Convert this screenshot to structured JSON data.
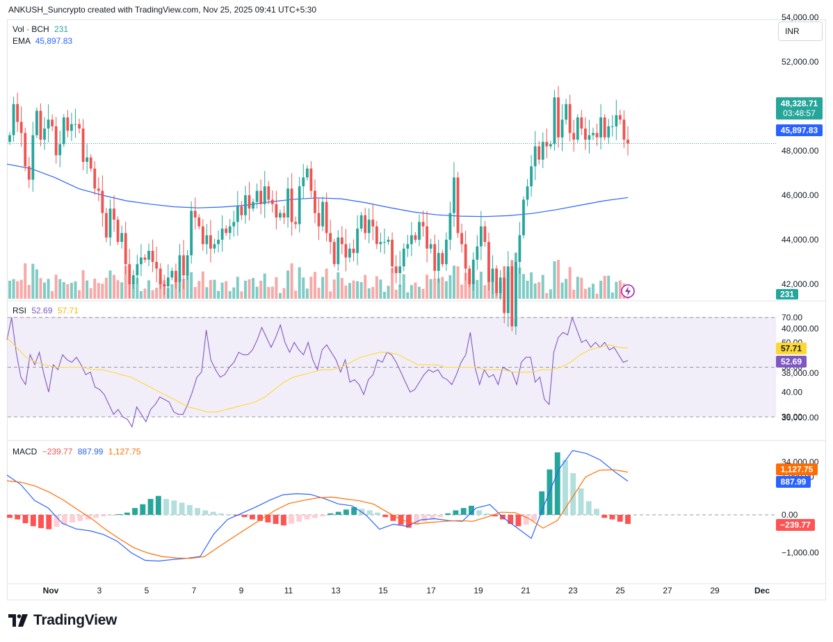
{
  "header": "ANKUSH_Suncrypto created with TradingView.com, Nov 25, 2025 09:41 UTC+5:30",
  "currency_button": "INR",
  "legends": {
    "vol": {
      "label": "Vol · BCH",
      "value": "231"
    },
    "ema": {
      "label": "EMA",
      "value": "45,897.83"
    },
    "rsi": {
      "label": "RSI",
      "v1": "52.69",
      "v2": "57.71"
    },
    "macd": {
      "label": "MACD",
      "v1": "−239.77",
      "v2": "887.99",
      "v3": "1,127.75"
    }
  },
  "brand": "TradingView",
  "chart_data": [
    {
      "type": "candlestick",
      "pane": "price",
      "x_ticks": [
        "Nov",
        "3",
        "5",
        "7",
        "9",
        "11",
        "13",
        "15",
        "17",
        "19",
        "21",
        "23",
        "25",
        "27",
        "29",
        "Dec"
      ],
      "y_ticks": [
        "34,000.00",
        "36,000.00",
        "38,000.00",
        "40,000.00",
        "42,000.00",
        "44,000.00",
        "46,000.00",
        "48,000.00",
        "50,000.00",
        "52,000.00",
        "54,000.00"
      ],
      "ylim": [
        31000,
        54800
      ],
      "close": [
        48700,
        50100,
        49300,
        48800,
        47300,
        46700,
        48700,
        49800,
        48500,
        49000,
        49400,
        49100,
        47800,
        48300,
        49500,
        48900,
        49200,
        49200,
        49000,
        47500,
        47700,
        47200,
        46300,
        46200,
        45200,
        44100,
        45400,
        44900,
        43900,
        44300,
        42900,
        42000,
        42400,
        42900,
        43200,
        43100,
        43500,
        43000,
        42700,
        42000,
        41900,
        42300,
        42600,
        42100,
        43300,
        42400,
        43300,
        45300,
        45000,
        44600,
        43800,
        44200,
        43600,
        43800,
        44000,
        44500,
        44300,
        44600,
        44800,
        45500,
        45100,
        46000,
        45400,
        45700,
        46200,
        45600,
        46400,
        45800,
        45600,
        45000,
        45200,
        45000,
        46300,
        44800,
        44700,
        46400,
        46800,
        47200,
        46200,
        45200,
        44600,
        45700,
        44300,
        43900,
        42900,
        44100,
        43800,
        43200,
        43600,
        43400,
        44500,
        45100,
        44300,
        44900,
        44600,
        43800,
        43900,
        43900,
        44000,
        42800,
        42500,
        42800,
        43600,
        43800,
        44200,
        44000,
        44800,
        44600,
        43600,
        43800,
        42600,
        43400,
        42900,
        44000,
        45200,
        46800,
        44300,
        43800,
        42700,
        42000,
        43100,
        43700,
        44600,
        43900,
        42100,
        42700,
        41600,
        42300,
        40700,
        42800,
        40100,
        43000,
        44200,
        45800,
        46400,
        47300,
        48200,
        47600,
        48400,
        48200,
        48300,
        50400,
        48600,
        49400,
        50100,
        48800,
        48500,
        49500,
        49000,
        48500,
        48700,
        48800,
        48600,
        49500,
        48600,
        49100,
        49100,
        49600,
        49400,
        48500,
        48328.71
      ],
      "ema_approx": [
        47400,
        47200,
        46800,
        46300,
        46000,
        45750,
        45600,
        45480,
        45430,
        45470,
        45550,
        45700,
        45820,
        45880,
        45840,
        45670,
        45450,
        45250,
        45120,
        45060,
        45040,
        45080,
        45180,
        45350,
        45550,
        45750,
        45897.83
      ],
      "last_price_label": "48,328.71",
      "countdown_label": "03:48:57",
      "ema_label": "45,897.83",
      "volume_label": "231"
    },
    {
      "type": "line",
      "pane": "rsi",
      "name": "RSI",
      "y_ticks": [
        "30.00",
        "40.00",
        "50.00",
        "60.00",
        "70.00"
      ],
      "ylim": [
        25,
        72
      ],
      "band": [
        30,
        70
      ],
      "rsi": [
        61,
        70,
        56,
        46,
        43,
        55,
        51,
        56,
        47,
        40,
        51,
        49,
        55,
        53,
        52,
        54,
        51,
        47,
        48,
        42,
        41,
        39,
        35,
        31,
        33,
        30,
        29,
        26,
        34,
        31,
        28,
        33,
        35,
        38,
        37,
        36,
        32,
        31,
        31,
        35,
        40,
        46,
        48,
        65,
        53,
        49,
        46,
        47,
        50,
        52,
        56,
        55,
        55,
        57,
        61,
        66,
        62,
        58,
        62,
        67,
        60,
        56,
        60,
        57,
        55,
        60,
        53,
        49,
        57,
        59,
        56,
        53,
        48,
        53,
        44,
        45,
        43,
        39,
        45,
        47,
        53,
        52,
        56,
        55,
        52,
        48,
        44,
        40,
        41,
        44,
        47,
        49,
        48,
        49,
        46,
        45,
        43,
        47,
        52,
        55,
        64,
        50,
        43,
        49,
        46,
        47,
        43,
        50,
        49,
        48,
        43,
        52,
        54,
        54,
        44,
        46,
        37,
        35,
        56,
        62,
        64,
        63,
        70,
        65,
        60,
        61,
        58,
        60,
        58,
        60,
        57,
        58,
        55,
        52,
        52.69
      ],
      "rsi_ma": [
        62,
        58,
        54,
        52,
        51,
        50,
        50,
        50,
        50,
        49,
        49,
        48,
        47,
        46,
        44,
        42,
        40,
        38,
        36,
        34,
        33,
        32,
        32,
        33,
        34,
        35,
        36,
        38,
        41,
        44,
        46,
        47,
        48,
        49,
        49,
        50,
        52,
        54,
        55,
        56,
        56,
        55,
        53,
        51,
        51,
        51,
        50,
        50,
        50,
        50,
        49,
        49,
        49,
        48,
        48,
        48,
        49,
        49,
        50,
        52,
        55,
        57,
        58,
        59,
        58,
        57.71
      ],
      "last_labels": [
        "57.71",
        "52.69"
      ]
    },
    {
      "type": "macd",
      "pane": "macd",
      "name": "MACD",
      "y_ticks": [
        "−1,000.00",
        "0.00",
        "1,000.00"
      ],
      "ylim": [
        -1450,
        1650
      ],
      "macd_line": [
        1050,
        800,
        380,
        180,
        -220,
        -370,
        -420,
        -520,
        -700,
        -1000,
        -1200,
        -1220,
        -1180,
        -1150,
        -1100,
        -500,
        -120,
        40,
        200,
        380,
        530,
        560,
        540,
        430,
        290,
        240,
        0,
        -380,
        -250,
        -300,
        -130,
        -100,
        -150,
        -170,
        180,
        270,
        -80,
        -350,
        -620,
        320,
        1200,
        1700,
        1620,
        1450,
        1150,
        887.99
      ],
      "signal_line": [
        900,
        860,
        760,
        600,
        390,
        140,
        -100,
        -390,
        -640,
        -870,
        -1010,
        -1100,
        -1140,
        -1150,
        -1100,
        -850,
        -600,
        -360,
        -120,
        120,
        300,
        380,
        450,
        470,
        420,
        370,
        280,
        60,
        -140,
        -240,
        -200,
        -170,
        -150,
        -170,
        -60,
        70,
        60,
        -100,
        -350,
        -150,
        420,
        1000,
        1180,
        1190,
        1127.75
      ],
      "histogram": [
        -80,
        -120,
        -220,
        -300,
        -350,
        -380,
        -320,
        -260,
        -200,
        -160,
        -120,
        -80,
        -40,
        -20,
        20,
        60,
        180,
        280,
        420,
        500,
        420,
        380,
        320,
        260,
        180,
        120,
        80,
        40,
        20,
        -20,
        -60,
        -120,
        -160,
        -200,
        -240,
        -280,
        -230,
        -180,
        -120,
        -80,
        -40,
        40,
        80,
        140,
        200,
        160,
        120,
        60,
        -60,
        -160,
        -260,
        -340,
        -260,
        -180,
        -120,
        -60,
        40,
        120,
        180,
        240,
        120,
        40,
        -40,
        -120,
        -240,
        -300,
        -260,
        -160,
        620,
        1200,
        1650,
        1450,
        1100,
        700,
        360,
        160,
        -80,
        -120,
        -180,
        -239.77
      ],
      "last_labels": [
        "1,127.75",
        "887.99",
        "−239.77"
      ]
    }
  ],
  "colors": {
    "up": "#26a69a",
    "down": "#ef5350",
    "ema": "#2962ff",
    "rsi": "#7e57c2",
    "rsi_ma": "#fdd835",
    "rsi_band": "#7e57c2",
    "macd": "#2962ff",
    "signal": "#ff6d00",
    "hist_up_strong": "#26a69a",
    "hist_up_weak": "#b2dfdb",
    "hist_down_strong": "#ff5252",
    "hist_down_weak": "#ffcdd2",
    "text": "#131722",
    "grid_dash": "#9598a1"
  }
}
